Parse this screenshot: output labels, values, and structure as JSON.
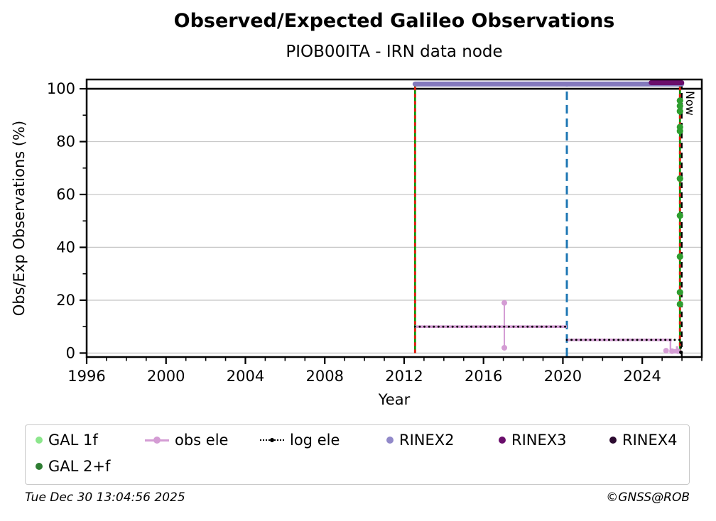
{
  "header": {
    "title": "Observed/Expected Galileo Observations",
    "subtitle": "PIOB00ITA - IRN data node"
  },
  "footer": {
    "timestamp": "Tue Dec 30 13:04:56 2025",
    "credit": "©GNSS@ROB"
  },
  "chart_data": {
    "type": "line",
    "title": "Observed/Expected Galileo Observations",
    "subtitle": "PIOB00ITA - IRN data node",
    "xlabel": "Year",
    "ylabel": "Obs/Exp Observations (%)",
    "xlim": [
      1996,
      2027
    ],
    "ylim": [
      -1.5,
      103.5
    ],
    "x_major_ticks": [
      1996,
      2000,
      2004,
      2008,
      2012,
      2016,
      2020,
      2024
    ],
    "x_minor_step": 1,
    "y_major_ticks": [
      0,
      20,
      40,
      60,
      80,
      100
    ],
    "y_minor_step": 10,
    "grid": true,
    "grid_color": "#c8c8c8",
    "reference_line": {
      "y": 100,
      "color": "#000000",
      "width": 2.6
    },
    "vlines": [
      {
        "name": "data-start",
        "x": 2012.55,
        "y0": 0,
        "y1": 102,
        "color": "#0a9a0a",
        "dash": "",
        "width": 2.8,
        "overlay": {
          "color": "#e8190f",
          "dash": "5 5"
        }
      },
      {
        "name": "rinex-version-change",
        "x": 2020.2,
        "y0": -1.2,
        "y1": 101,
        "color": "#1f77b4",
        "dash": "12 7",
        "width": 3
      },
      {
        "name": "data-end",
        "x": 2025.9,
        "y0": 0,
        "y1": 102,
        "color": "#0a9a0a",
        "dash": "",
        "width": 2.8,
        "overlay": {
          "color": "#e8190f",
          "dash": "5 5"
        }
      },
      {
        "name": "now",
        "x": 2025.99,
        "y0": -1.5,
        "y1": 103.5,
        "color": "#000000",
        "dash": "8 6",
        "width": 2.3,
        "label": "Now"
      }
    ],
    "series": [
      {
        "name": "RINEX2",
        "color": "#8379bd",
        "width": 7,
        "cap": "round",
        "segments": [
          [
            2012.55,
            101.8,
            2025.99,
            101.8
          ]
        ]
      },
      {
        "name": "RINEX3",
        "color": "#6a0d6b",
        "width": 7,
        "cap": "round",
        "segments": [
          [
            2024.45,
            102.3,
            2025.99,
            102.3
          ]
        ]
      },
      {
        "name": "obs ele",
        "color": "#d49cd4",
        "width": 3.6,
        "marker_r": 4,
        "segments": [
          [
            2012.55,
            10,
            2020.2,
            10
          ],
          [
            2020.2,
            5,
            2025.5,
            5
          ],
          [
            2017.05,
            2,
            2017.05,
            19,
            2
          ],
          [
            2025.42,
            0.4,
            2025.42,
            5,
            2.4
          ],
          [
            2025.42,
            0.7,
            2025.85,
            0.7,
            6
          ],
          [
            2025.75,
            0.4,
            2025.75,
            2.6,
            3
          ]
        ],
        "markers": [
          [
            2017.05,
            19
          ],
          [
            2017.05,
            2
          ],
          [
            2025.2,
            0.9
          ],
          [
            2025.5,
            0.7
          ],
          [
            2025.8,
            0.7
          ]
        ]
      },
      {
        "name": "log ele",
        "color": "#000000",
        "width": 2.9,
        "dash": "0.1 6.5",
        "cap": "round",
        "marker_r": 2.6,
        "segments": [
          [
            2012.55,
            10,
            2020.2,
            10
          ],
          [
            2020.2,
            5,
            2025.95,
            5
          ],
          [
            2025.95,
            0.3,
            2025.95,
            5
          ]
        ],
        "markers": [
          [
            2025.95,
            0.3
          ]
        ]
      },
      {
        "name": "GAL 2+f",
        "color": "#2f9e2f",
        "marker_r": 4.6,
        "points_x": 2025.9,
        "points_y": [
          95.5,
          93.5,
          91.5,
          85.5,
          84,
          66,
          52,
          36.5,
          23,
          18.5
        ]
      },
      {
        "name": "GAL 1f",
        "color": "#8ce68c",
        "marker_r": 4.6,
        "points_x": 2025.9,
        "points_y": []
      }
    ],
    "legend": [
      {
        "label": "GAL 1f",
        "marker": "dot",
        "color": "#8ce68c"
      },
      {
        "label": "obs ele",
        "marker": "line-dot",
        "color": "#d49cd4"
      },
      {
        "label": "log ele",
        "marker": "dotted-line",
        "color": "#000000"
      },
      {
        "label": "RINEX2",
        "marker": "dot",
        "color": "#9189c9"
      },
      {
        "label": "RINEX3",
        "marker": "dot",
        "color": "#6a0d6b"
      },
      {
        "label": "RINEX4",
        "marker": "dot",
        "color": "#2c0a30"
      },
      {
        "label": "GAL 2+f",
        "marker": "dot",
        "color": "#2e7d32"
      }
    ],
    "legend_position": "bottom",
    "now_label": "Now"
  }
}
